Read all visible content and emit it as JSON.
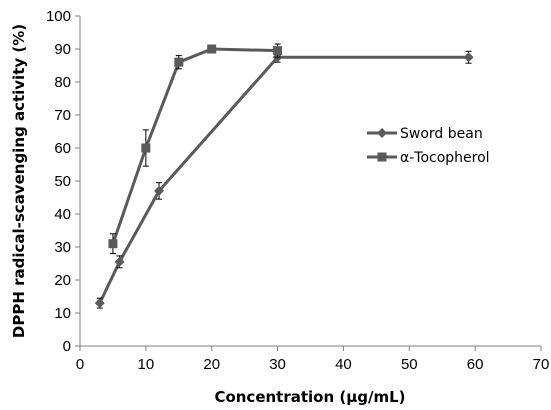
{
  "chart_data": {
    "type": "line",
    "xlabel": "Concentration (μg/mL)",
    "ylabel": "DPPH radical-scavenging activity (%)",
    "xlim": [
      0,
      70
    ],
    "ylim": [
      0,
      100
    ],
    "x_ticks": [
      0,
      10,
      20,
      30,
      40,
      50,
      60,
      70
    ],
    "y_ticks": [
      0,
      10,
      20,
      30,
      40,
      50,
      60,
      70,
      80,
      90,
      100
    ],
    "grid": false,
    "legend_position": "right",
    "series": [
      {
        "name": "Sword bean",
        "marker": "diamond",
        "color": "#5a5a5a",
        "x": [
          3,
          6,
          12,
          30,
          59
        ],
        "y": [
          13,
          25.5,
          47,
          87.5,
          87.5
        ],
        "error": [
          1.5,
          1.8,
          2.5,
          1.5,
          1.8
        ]
      },
      {
        "name": "α-Tocopherol",
        "marker": "square",
        "color": "#5a5a5a",
        "x": [
          5,
          10,
          15,
          20,
          30
        ],
        "y": [
          31,
          60,
          86,
          90,
          89.5
        ],
        "error": [
          3,
          5.5,
          2,
          0.7,
          2
        ]
      }
    ]
  }
}
